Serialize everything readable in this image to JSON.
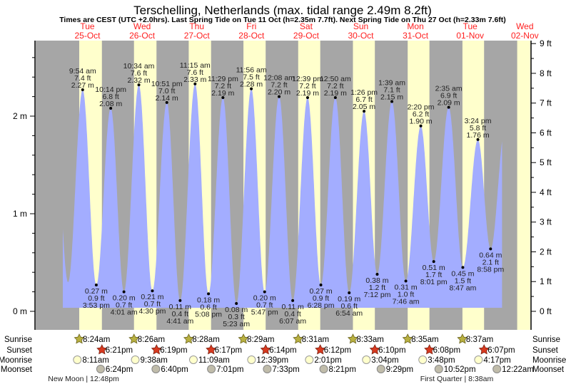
{
  "title": "Terschelling, Netherlands (max. tidal range 2.49m 8.2ft)",
  "subtitle": "Times are CEST (UTC +2.0hrs). Last Spring Tide on Tue 11 Oct (h=2.35m 7.7ft). Next Spring Tide on Thu 27 Oct (h=2.33m 7.6ft)",
  "colors": {
    "day_label": "#ff2020",
    "night": "#a6a6a6",
    "daylight": "#ffffcc",
    "water": "#a3adff"
  },
  "chart_data": {
    "type": "area",
    "title": "Terschelling, Netherlands (max. tidal range 2.49m 8.2ft)",
    "y_left": {
      "label_unit": "m",
      "range": [
        0,
        2.9
      ],
      "tick_labels": [
        "0 m",
        "1 m",
        "2 m"
      ],
      "tick_values": [
        0,
        1,
        2
      ]
    },
    "y_right": {
      "label_unit": "ft",
      "tick_labels": [
        "0 ft",
        "1 ft",
        "2 ft",
        "3 ft",
        "4 ft",
        "5 ft",
        "6 ft",
        "7 ft",
        "8 ft",
        "9 ft"
      ],
      "tick_values": [
        0,
        1,
        2,
        3,
        4,
        5,
        6,
        7,
        8,
        9
      ]
    },
    "days": [
      {
        "name": "Tue",
        "date": "25-Oct"
      },
      {
        "name": "Wed",
        "date": "26-Oct"
      },
      {
        "name": "Thu",
        "date": "27-Oct"
      },
      {
        "name": "Fri",
        "date": "28-Oct"
      },
      {
        "name": "Sat",
        "date": "29-Oct"
      },
      {
        "name": "Sun",
        "date": "30-Oct"
      },
      {
        "name": "Mon",
        "date": "31-Oct"
      },
      {
        "name": "Tue",
        "date": "01-Nov"
      },
      {
        "name": "Wed",
        "date": "02-Nov"
      }
    ],
    "tides": [
      {
        "date": "25-Oct",
        "time": "9:54 am",
        "m": 2.27,
        "ft": 7.4,
        "type": "high"
      },
      {
        "date": "25-Oct",
        "time": "3:53 pm",
        "m": 0.27,
        "ft": 0.9,
        "type": "low"
      },
      {
        "date": "25-Oct",
        "time": "10:14 pm",
        "m": 2.08,
        "ft": 6.8,
        "type": "high"
      },
      {
        "date": "26-Oct",
        "time": "4:01 am",
        "m": 0.2,
        "ft": 0.7,
        "type": "low"
      },
      {
        "date": "26-Oct",
        "time": "10:34 am",
        "m": 2.32,
        "ft": 7.6,
        "type": "high"
      },
      {
        "date": "26-Oct",
        "time": "4:30 pm",
        "m": 0.21,
        "ft": 0.7,
        "type": "low"
      },
      {
        "date": "26-Oct",
        "time": "10:51 pm",
        "m": 2.14,
        "ft": 7.0,
        "type": "high"
      },
      {
        "date": "27-Oct",
        "time": "4:41 am",
        "m": 0.11,
        "ft": 0.4,
        "type": "low"
      },
      {
        "date": "27-Oct",
        "time": "11:15 am",
        "m": 2.33,
        "ft": 7.6,
        "type": "high"
      },
      {
        "date": "27-Oct",
        "time": "5:08 pm",
        "m": 0.18,
        "ft": 0.6,
        "type": "low"
      },
      {
        "date": "27-Oct",
        "time": "11:29 pm",
        "m": 2.19,
        "ft": 7.2,
        "type": "high"
      },
      {
        "date": "28-Oct",
        "time": "5:23 am",
        "m": 0.08,
        "ft": 0.3,
        "type": "low"
      },
      {
        "date": "28-Oct",
        "time": "11:56 am",
        "m": 2.28,
        "ft": 7.5,
        "type": "high"
      },
      {
        "date": "28-Oct",
        "time": "5:47 pm",
        "m": 0.2,
        "ft": 0.7,
        "type": "low"
      },
      {
        "date": "29-Oct",
        "time": "12:08 am",
        "m": 2.2,
        "ft": 7.2,
        "type": "high"
      },
      {
        "date": "29-Oct",
        "time": "6:07 am",
        "m": 0.11,
        "ft": 0.4,
        "type": "low"
      },
      {
        "date": "29-Oct",
        "time": "12:39 pm",
        "m": 2.19,
        "ft": 7.2,
        "type": "high"
      },
      {
        "date": "29-Oct",
        "time": "6:28 pm",
        "m": 0.27,
        "ft": 0.9,
        "type": "low"
      },
      {
        "date": "30-Oct",
        "time": "12:50 am",
        "m": 2.19,
        "ft": 7.2,
        "type": "high"
      },
      {
        "date": "30-Oct",
        "time": "6:54 am",
        "m": 0.19,
        "ft": 0.6,
        "type": "low"
      },
      {
        "date": "30-Oct",
        "time": "1:26 pm",
        "m": 2.05,
        "ft": 6.7,
        "type": "high"
      },
      {
        "date": "30-Oct",
        "time": "7:12 pm",
        "m": 0.38,
        "ft": 1.2,
        "type": "low"
      },
      {
        "date": "31-Oct",
        "time": "1:39 am",
        "m": 2.15,
        "ft": 7.1,
        "type": "high"
      },
      {
        "date": "31-Oct",
        "time": "7:46 am",
        "m": 0.31,
        "ft": 1.0,
        "type": "low"
      },
      {
        "date": "31-Oct",
        "time": "2:20 pm",
        "m": 1.9,
        "ft": 6.2,
        "type": "high"
      },
      {
        "date": "31-Oct",
        "time": "8:01 pm",
        "m": 0.51,
        "ft": 1.7,
        "type": "low"
      },
      {
        "date": "01-Nov",
        "time": "2:35 am",
        "m": 2.09,
        "ft": 6.9,
        "type": "high"
      },
      {
        "date": "01-Nov",
        "time": "8:47 am",
        "m": 0.45,
        "ft": 1.5,
        "type": "low"
      },
      {
        "date": "01-Nov",
        "time": "3:24 pm",
        "m": 1.76,
        "ft": 5.8,
        "type": "high"
      },
      {
        "date": "01-Nov",
        "time": "8:58 pm",
        "m": 0.64,
        "ft": 2.1,
        "type": "low"
      }
    ]
  },
  "astro": {
    "row_labels": {
      "sunrise": "Sunrise",
      "sunset": "Sunset",
      "moonrise": "Moonrise",
      "moonset": "Moonset"
    },
    "sunrise": [
      {
        "date": "25-Oct",
        "time": "8:24am"
      },
      {
        "date": "26-Oct",
        "time": "8:26am"
      },
      {
        "date": "27-Oct",
        "time": "8:28am"
      },
      {
        "date": "28-Oct",
        "time": "8:29am"
      },
      {
        "date": "29-Oct",
        "time": "8:31am"
      },
      {
        "date": "30-Oct",
        "time": "8:33am"
      },
      {
        "date": "31-Oct",
        "time": "8:35am"
      },
      {
        "date": "01-Nov",
        "time": "8:37am"
      }
    ],
    "sunset": [
      {
        "date": "25-Oct",
        "time": "6:21pm"
      },
      {
        "date": "26-Oct",
        "time": "6:19pm"
      },
      {
        "date": "27-Oct",
        "time": "6:17pm"
      },
      {
        "date": "28-Oct",
        "time": "6:14pm"
      },
      {
        "date": "29-Oct",
        "time": "6:12pm"
      },
      {
        "date": "30-Oct",
        "time": "6:10pm"
      },
      {
        "date": "31-Oct",
        "time": "6:08pm"
      },
      {
        "date": "01-Nov",
        "time": "6:07pm"
      }
    ],
    "moonrise": [
      {
        "date": "25-Oct",
        "time": "8:11am"
      },
      {
        "date": "26-Oct",
        "time": "9:38am"
      },
      {
        "date": "27-Oct",
        "time": "11:09am"
      },
      {
        "date": "28-Oct",
        "time": "12:39pm"
      },
      {
        "date": "29-Oct",
        "time": "2:01pm"
      },
      {
        "date": "30-Oct",
        "time": "3:04pm"
      },
      {
        "date": "31-Oct",
        "time": "3:48pm"
      },
      {
        "date": "01-Nov",
        "time": "4:17pm"
      }
    ],
    "moonset": [
      {
        "date": "25-Oct",
        "time": "6:24pm"
      },
      {
        "date": "26-Oct",
        "time": "6:40pm"
      },
      {
        "date": "27-Oct",
        "time": "7:01pm"
      },
      {
        "date": "28-Oct",
        "time": "7:33pm"
      },
      {
        "date": "29-Oct",
        "time": "8:21pm"
      },
      {
        "date": "30-Oct",
        "time": "9:29pm"
      },
      {
        "date": "31-Oct",
        "time": "10:52pm"
      },
      {
        "date": "02-Nov",
        "time": "12:22am"
      }
    ],
    "moon_phases": [
      {
        "date": "25-Oct",
        "phase": "New Moon",
        "time": "12:48pm",
        "text": "New Moon | 12:48pm"
      },
      {
        "date": "01-Nov",
        "phase": "First Quarter",
        "time": "8:38am",
        "text": "First Quarter | 8:38am"
      }
    ]
  }
}
